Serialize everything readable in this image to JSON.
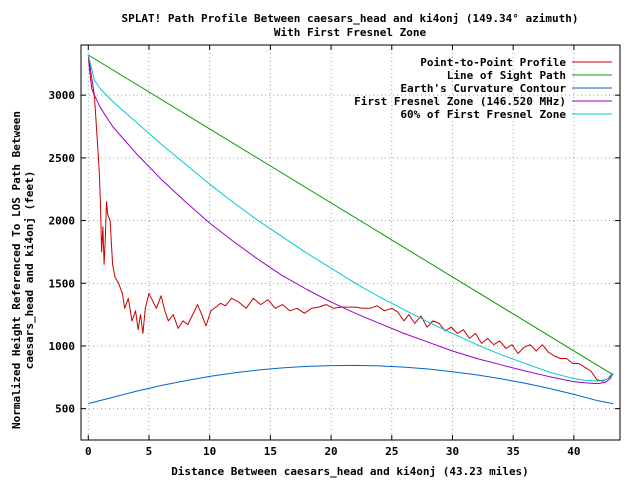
{
  "chart_data": {
    "type": "line",
    "title": "SPLAT! Path Profile Between caesars_head and ki4onj (149.34° azimuth)",
    "subtitle": "With First Fresnel Zone",
    "xlabel": "Distance Between caesars_head and ki4onj (43.23 miles)",
    "ylabel_lines": [
      "Normalized Height Referenced To LOS Path Between",
      "caesars_head and ki4onj (feet)"
    ],
    "xlim": [
      -0.6,
      43.8
    ],
    "ylim": [
      250,
      3400
    ],
    "x_ticks": [
      0,
      5,
      10,
      15,
      20,
      25,
      30,
      35,
      40
    ],
    "y_ticks": [
      500,
      1000,
      1500,
      2000,
      2500,
      3000
    ],
    "grid": true,
    "grid_style": "dotted",
    "legend_position": "top-right",
    "series": [
      {
        "name": "Point-to-Point Profile",
        "color": "#cc0000",
        "points": [
          [
            0,
            3320
          ],
          [
            0.1,
            3200
          ],
          [
            0.3,
            3050
          ],
          [
            0.5,
            3000
          ],
          [
            0.7,
            2700
          ],
          [
            0.9,
            2400
          ],
          [
            1.0,
            2150
          ],
          [
            1.1,
            1750
          ],
          [
            1.2,
            1950
          ],
          [
            1.3,
            1650
          ],
          [
            1.4,
            1850
          ],
          [
            1.5,
            2150
          ],
          [
            1.6,
            2050
          ],
          [
            1.8,
            2000
          ],
          [
            2.0,
            1650
          ],
          [
            2.2,
            1550
          ],
          [
            2.5,
            1500
          ],
          [
            2.8,
            1420
          ],
          [
            3.0,
            1300
          ],
          [
            3.3,
            1380
          ],
          [
            3.6,
            1200
          ],
          [
            3.9,
            1280
          ],
          [
            4.1,
            1130
          ],
          [
            4.3,
            1250
          ],
          [
            4.5,
            1100
          ],
          [
            4.7,
            1300
          ],
          [
            5.0,
            1420
          ],
          [
            5.3,
            1360
          ],
          [
            5.6,
            1300
          ],
          [
            6.0,
            1400
          ],
          [
            6.3,
            1280
          ],
          [
            6.6,
            1200
          ],
          [
            7.0,
            1250
          ],
          [
            7.4,
            1140
          ],
          [
            7.8,
            1200
          ],
          [
            8.2,
            1170
          ],
          [
            8.6,
            1250
          ],
          [
            9.0,
            1330
          ],
          [
            9.3,
            1260
          ],
          [
            9.7,
            1160
          ],
          [
            10.1,
            1280
          ],
          [
            10.5,
            1310
          ],
          [
            10.9,
            1340
          ],
          [
            11.3,
            1320
          ],
          [
            11.8,
            1380
          ],
          [
            12.4,
            1350
          ],
          [
            13.0,
            1300
          ],
          [
            13.6,
            1380
          ],
          [
            14.2,
            1330
          ],
          [
            14.8,
            1370
          ],
          [
            15.4,
            1300
          ],
          [
            16.0,
            1330
          ],
          [
            16.6,
            1280
          ],
          [
            17.2,
            1300
          ],
          [
            17.8,
            1260
          ],
          [
            18.4,
            1300
          ],
          [
            19.0,
            1310
          ],
          [
            19.6,
            1330
          ],
          [
            20.2,
            1300
          ],
          [
            20.8,
            1310
          ],
          [
            21.4,
            1310
          ],
          [
            22.0,
            1310
          ],
          [
            22.6,
            1300
          ],
          [
            23.2,
            1300
          ],
          [
            23.8,
            1320
          ],
          [
            24.4,
            1280
          ],
          [
            25.0,
            1300
          ],
          [
            25.5,
            1270
          ],
          [
            26.0,
            1200
          ],
          [
            26.4,
            1250
          ],
          [
            26.9,
            1180
          ],
          [
            27.4,
            1240
          ],
          [
            27.9,
            1150
          ],
          [
            28.4,
            1200
          ],
          [
            28.9,
            1180
          ],
          [
            29.4,
            1120
          ],
          [
            29.9,
            1150
          ],
          [
            30.4,
            1100
          ],
          [
            30.9,
            1130
          ],
          [
            31.4,
            1060
          ],
          [
            31.9,
            1100
          ],
          [
            32.4,
            1020
          ],
          [
            32.9,
            1060
          ],
          [
            33.4,
            1010
          ],
          [
            33.9,
            1040
          ],
          [
            34.4,
            980
          ],
          [
            34.9,
            1010
          ],
          [
            35.4,
            940
          ],
          [
            35.9,
            990
          ],
          [
            36.4,
            1010
          ],
          [
            36.9,
            960
          ],
          [
            37.4,
            1010
          ],
          [
            37.9,
            950
          ],
          [
            38.4,
            920
          ],
          [
            38.9,
            900
          ],
          [
            39.4,
            900
          ],
          [
            39.9,
            860
          ],
          [
            40.4,
            860
          ],
          [
            40.9,
            830
          ],
          [
            41.4,
            800
          ],
          [
            41.9,
            730
          ],
          [
            42.4,
            720
          ],
          [
            42.8,
            740
          ],
          [
            43.0,
            760
          ],
          [
            43.23,
            780
          ]
        ]
      },
      {
        "name": "Line of Sight Path",
        "color": "#00a000",
        "points": [
          [
            0,
            3320
          ],
          [
            43.23,
            770
          ]
        ]
      },
      {
        "name": "Earth's Curvature Contour",
        "color": "#0066cc",
        "points": [
          [
            0,
            540
          ],
          [
            2,
            590
          ],
          [
            4,
            640
          ],
          [
            6,
            685
          ],
          [
            8,
            722
          ],
          [
            10,
            757
          ],
          [
            12,
            785
          ],
          [
            14,
            808
          ],
          [
            16,
            825
          ],
          [
            18,
            837
          ],
          [
            20,
            843
          ],
          [
            22,
            845
          ],
          [
            24,
            841
          ],
          [
            26,
            831
          ],
          [
            28,
            816
          ],
          [
            30,
            795
          ],
          [
            32,
            769
          ],
          [
            34,
            738
          ],
          [
            36,
            702
          ],
          [
            38,
            661
          ],
          [
            40,
            614
          ],
          [
            42,
            563
          ],
          [
            43.23,
            540
          ]
        ]
      },
      {
        "name": "First Fresnel Zone (146.520 MHz)",
        "color": "#9900cc",
        "points": [
          [
            0,
            3320
          ],
          [
            0.5,
            3000
          ],
          [
            1,
            2900
          ],
          [
            2,
            2750
          ],
          [
            4,
            2530
          ],
          [
            6,
            2330
          ],
          [
            8,
            2150
          ],
          [
            10,
            1980
          ],
          [
            12,
            1830
          ],
          [
            14,
            1690
          ],
          [
            16,
            1560
          ],
          [
            18,
            1450
          ],
          [
            20,
            1350
          ],
          [
            22,
            1260
          ],
          [
            24,
            1180
          ],
          [
            26,
            1100
          ],
          [
            28,
            1030
          ],
          [
            30,
            960
          ],
          [
            32,
            900
          ],
          [
            34,
            850
          ],
          [
            36,
            800
          ],
          [
            38,
            755
          ],
          [
            40,
            715
          ],
          [
            41,
            705
          ],
          [
            42,
            700
          ],
          [
            42.6,
            710
          ],
          [
            43.0,
            740
          ],
          [
            43.23,
            780
          ]
        ]
      },
      {
        "name": "60% of First Fresnel Zone",
        "color": "#00cccc",
        "points": [
          [
            0,
            3320
          ],
          [
            0.5,
            3120
          ],
          [
            1,
            3050
          ],
          [
            2,
            2950
          ],
          [
            4,
            2780
          ],
          [
            6,
            2610
          ],
          [
            8,
            2450
          ],
          [
            10,
            2290
          ],
          [
            12,
            2140
          ],
          [
            14,
            2000
          ],
          [
            16,
            1870
          ],
          [
            18,
            1740
          ],
          [
            20,
            1620
          ],
          [
            22,
            1500
          ],
          [
            24,
            1390
          ],
          [
            26,
            1290
          ],
          [
            28,
            1190
          ],
          [
            30,
            1100
          ],
          [
            32,
            1010
          ],
          [
            34,
            930
          ],
          [
            36,
            860
          ],
          [
            38,
            790
          ],
          [
            40,
            740
          ],
          [
            41,
            725
          ],
          [
            42,
            720
          ],
          [
            42.6,
            730
          ],
          [
            43.0,
            750
          ],
          [
            43.23,
            775
          ]
        ]
      }
    ]
  }
}
